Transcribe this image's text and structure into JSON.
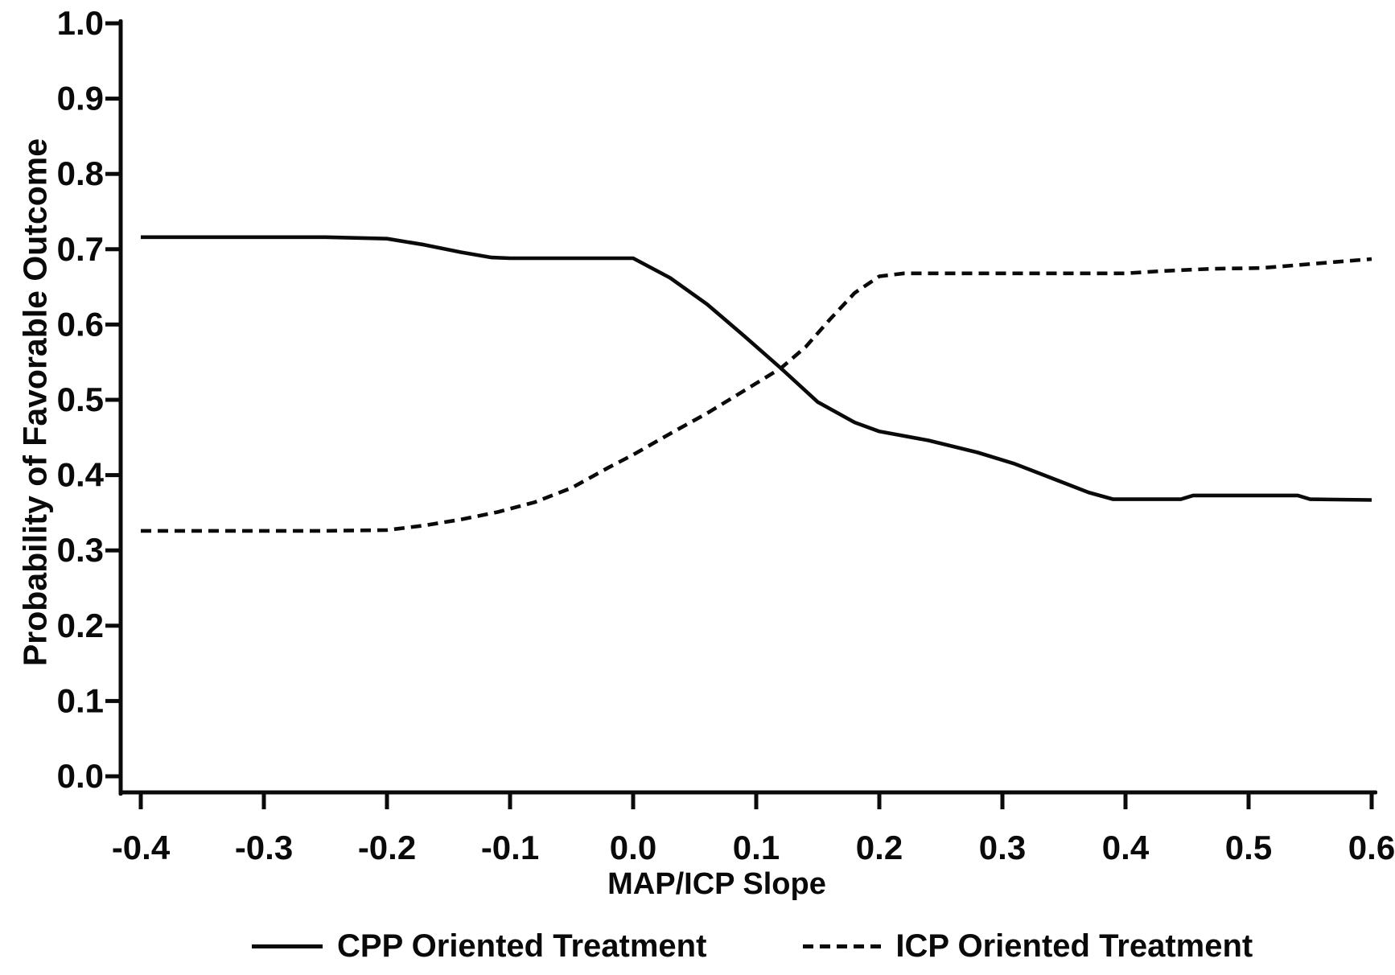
{
  "figure": {
    "background_color": "#ffffff",
    "line_color": "#0a0a0a"
  },
  "chart_data": {
    "type": "line",
    "title": "",
    "xlabel": "MAP/ICP Slope",
    "ylabel": "Probability of Favorable Outcome",
    "xlim": [
      -0.4,
      0.6
    ],
    "ylim": [
      0.0,
      1.0
    ],
    "xticks": [
      "-0.4",
      "-0.3",
      "-0.2",
      "-0.1",
      "0.0",
      "0.1",
      "0.2",
      "0.3",
      "0.4",
      "0.5",
      "0.6"
    ],
    "yticks": [
      "0.0",
      "0.1",
      "0.2",
      "0.3",
      "0.4",
      "0.5",
      "0.6",
      "0.7",
      "0.8",
      "0.9",
      "1.0"
    ],
    "grid": false,
    "legend_position": "bottom",
    "series": [
      {
        "name": "CPP Oriented Treatment",
        "line_style": "solid",
        "color": "#0a0a0a",
        "points": [
          [
            -0.4,
            0.716
          ],
          [
            -0.3,
            0.716
          ],
          [
            -0.25,
            0.716
          ],
          [
            -0.2,
            0.714
          ],
          [
            -0.17,
            0.706
          ],
          [
            -0.14,
            0.696
          ],
          [
            -0.115,
            0.689
          ],
          [
            -0.1,
            0.688
          ],
          [
            -0.05,
            0.688
          ],
          [
            0.0,
            0.688
          ],
          [
            0.03,
            0.662
          ],
          [
            0.06,
            0.627
          ],
          [
            0.09,
            0.585
          ],
          [
            0.12,
            0.542
          ],
          [
            0.15,
            0.497
          ],
          [
            0.18,
            0.47
          ],
          [
            0.2,
            0.458
          ],
          [
            0.24,
            0.446
          ],
          [
            0.28,
            0.43
          ],
          [
            0.31,
            0.415
          ],
          [
            0.34,
            0.396
          ],
          [
            0.37,
            0.377
          ],
          [
            0.39,
            0.368
          ],
          [
            0.445,
            0.368
          ],
          [
            0.455,
            0.373
          ],
          [
            0.54,
            0.373
          ],
          [
            0.55,
            0.368
          ],
          [
            0.6,
            0.367
          ]
        ]
      },
      {
        "name": "ICP Oriented Treatment",
        "line_style": "dashed",
        "color": "#0a0a0a",
        "points": [
          [
            -0.4,
            0.326
          ],
          [
            -0.3,
            0.326
          ],
          [
            -0.25,
            0.326
          ],
          [
            -0.2,
            0.327
          ],
          [
            -0.17,
            0.333
          ],
          [
            -0.14,
            0.341
          ],
          [
            -0.11,
            0.351
          ],
          [
            -0.08,
            0.364
          ],
          [
            -0.05,
            0.383
          ],
          [
            -0.02,
            0.41
          ],
          [
            0.0,
            0.427
          ],
          [
            0.03,
            0.455
          ],
          [
            0.06,
            0.482
          ],
          [
            0.09,
            0.512
          ],
          [
            0.12,
            0.542
          ],
          [
            0.14,
            0.57
          ],
          [
            0.16,
            0.607
          ],
          [
            0.18,
            0.642
          ],
          [
            0.2,
            0.664
          ],
          [
            0.22,
            0.668
          ],
          [
            0.3,
            0.668
          ],
          [
            0.4,
            0.668
          ],
          [
            0.43,
            0.671
          ],
          [
            0.47,
            0.674
          ],
          [
            0.51,
            0.675
          ],
          [
            0.54,
            0.679
          ],
          [
            0.57,
            0.683
          ],
          [
            0.6,
            0.687
          ]
        ]
      }
    ]
  }
}
